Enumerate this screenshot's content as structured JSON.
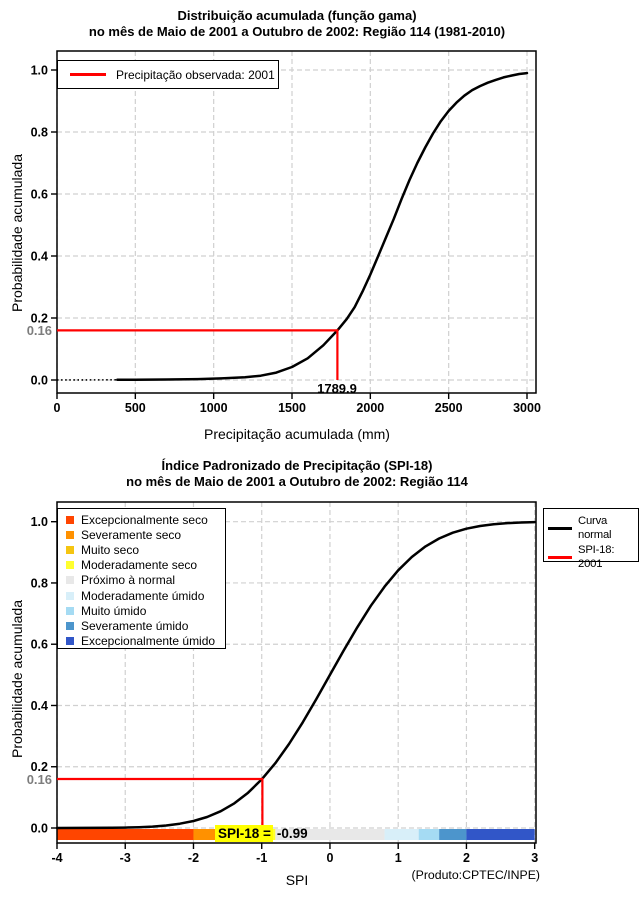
{
  "note": "(Produto:CPTEC/INPE)",
  "colors": {
    "observed_line": "#FF0000",
    "curve": "#000000",
    "grid": "#D0D0D0",
    "prob_label_gray": "#7D7D7D",
    "annotation_highlight": "#FFFF00"
  },
  "chart_data": [
    {
      "type": "line",
      "title1": "Distribuição acumulada (função gama)",
      "title2": "no mês de Maio de 2001 a Outubro de 2002: Região 114 (1981-2010)",
      "xlabel": "Precipitação acumulada (mm)",
      "ylabel": "Probabilidade acumulada",
      "xlim": [
        0,
        3000
      ],
      "ylim": [
        0,
        1
      ],
      "grid": true,
      "xtick_values": [
        0,
        500,
        1000,
        1500,
        2000,
        2500,
        3000
      ],
      "xtick_labels": [
        "0",
        "500",
        "1000",
        "1500",
        "2000",
        "2500",
        "3000"
      ],
      "ytick_values": [
        0,
        0.2,
        0.4,
        0.6,
        0.8,
        1
      ],
      "ytick_labels": [
        "0.0",
        "0.2",
        "0.4",
        "0.6",
        "0.8",
        "1.0"
      ],
      "legend": {
        "position": "top-left",
        "items": [
          {
            "label": "Precipitação observada: 2001",
            "color": "#FF0000"
          }
        ]
      },
      "marker": {
        "prob": 0.16,
        "prob_label": "0.16",
        "x": 1789.9,
        "x_label": "1789.9",
        "color": "#FF0000"
      },
      "series": [
        {
          "name": "Distribuição acumulada (função gama)",
          "color": "#000000",
          "dotted_until": 385,
          "points": [
            [
              0,
              0.0002
            ],
            [
              385,
              0.0005
            ],
            [
              500,
              0.0008
            ],
            [
              700,
              0.0015
            ],
            [
              900,
              0.003
            ],
            [
              1050,
              0.005
            ],
            [
              1200,
              0.009
            ],
            [
              1300,
              0.014
            ],
            [
              1400,
              0.024
            ],
            [
              1500,
              0.042
            ],
            [
              1600,
              0.07
            ],
            [
              1700,
              0.112
            ],
            [
              1789.9,
              0.16
            ],
            [
              1850,
              0.197
            ],
            [
              1900,
              0.235
            ],
            [
              1950,
              0.285
            ],
            [
              2000,
              0.34
            ],
            [
              2050,
              0.4
            ],
            [
              2100,
              0.46
            ],
            [
              2150,
              0.52
            ],
            [
              2200,
              0.585
            ],
            [
              2250,
              0.645
            ],
            [
              2300,
              0.7
            ],
            [
              2350,
              0.75
            ],
            [
              2400,
              0.795
            ],
            [
              2450,
              0.835
            ],
            [
              2500,
              0.868
            ],
            [
              2550,
              0.895
            ],
            [
              2600,
              0.917
            ],
            [
              2650,
              0.935
            ],
            [
              2700,
              0.948
            ],
            [
              2750,
              0.959
            ],
            [
              2800,
              0.968
            ],
            [
              2850,
              0.976
            ],
            [
              2900,
              0.982
            ],
            [
              2950,
              0.987
            ],
            [
              3000,
              0.99
            ]
          ]
        }
      ]
    },
    {
      "type": "line",
      "title1": "Índice Padronizado de Precipitação (SPI-18)",
      "title2": "no mês de Maio de 2001 a Outubro de 2002: Região 114",
      "xlabel": "SPI",
      "ylabel": "Probabilidade acumulada",
      "xlim": [
        -4,
        3
      ],
      "ylim": [
        0,
        1
      ],
      "grid": true,
      "xtick_values": [
        -4,
        -3,
        -2,
        -1,
        0,
        1,
        2,
        3
      ],
      "xtick_labels": [
        "-4",
        "-3",
        "-2",
        "-1",
        "0",
        "1",
        "2",
        "3"
      ],
      "ytick_values": [
        0,
        0.2,
        0.4,
        0.6,
        0.8,
        1
      ],
      "ytick_labels": [
        "0.0",
        "0.2",
        "0.4",
        "0.6",
        "0.8",
        "1.0"
      ],
      "categories_legend": {
        "position": "top-left",
        "items": [
          {
            "label": "Excepcionalmente seco",
            "color": "#FF4500"
          },
          {
            "label": "Severamente seco",
            "color": "#FF9100"
          },
          {
            "label": "Muito seco",
            "color": "#F5C511"
          },
          {
            "label": "Moderadamente seco",
            "color": "#FFFF2E"
          },
          {
            "label": "Próximo à normal",
            "color": "#E8E8E8"
          },
          {
            "label": "Moderadamente úmido",
            "color": "#D8EFF9"
          },
          {
            "label": "Muito úmido",
            "color": "#A5DBF3"
          },
          {
            "label": "Severamente úmido",
            "color": "#4C95CC"
          },
          {
            "label": "Excepcionalmente úmido",
            "color": "#3156C8"
          }
        ]
      },
      "curves_legend": {
        "position": "top-right",
        "items": [
          {
            "lines": [
              "Curva",
              "normal"
            ],
            "color": "#000000"
          },
          {
            "lines": [
              "SPI-18: 2001"
            ],
            "color": "#FF0000"
          }
        ]
      },
      "marker": {
        "prob": 0.16,
        "prob_label": "0.16",
        "x": -0.99,
        "color": "#FF0000"
      },
      "annotation": {
        "label": "SPI-18 =",
        "value": "-0.99",
        "highlight_color": "#FFFF00"
      },
      "bar_segments": [
        {
          "from": -4,
          "to": -2,
          "color": "#FF4500"
        },
        {
          "from": -2,
          "to": -1.6,
          "color": "#FF9100"
        },
        {
          "from": -1.6,
          "to": -1.3,
          "color": "#F5C511"
        },
        {
          "from": -1.3,
          "to": -0.8,
          "color": "#FFFF2E"
        },
        {
          "from": -0.8,
          "to": 0.8,
          "color": "#E8E8E8"
        },
        {
          "from": 0.8,
          "to": 1.3,
          "color": "#D8EFF9"
        },
        {
          "from": 1.3,
          "to": 1.6,
          "color": "#A5DBF3"
        },
        {
          "from": 1.6,
          "to": 2.0,
          "color": "#4C95CC"
        },
        {
          "from": 2.0,
          "to": 3.0,
          "color": "#3156C8"
        }
      ],
      "series": [
        {
          "name": "Curva normal",
          "color": "#000000",
          "points": [
            [
              -4,
              3e-05
            ],
            [
              -3.6,
              0.0002
            ],
            [
              -3.2,
              0.0007
            ],
            [
              -3,
              0.0013
            ],
            [
              -2.8,
              0.0026
            ],
            [
              -2.6,
              0.0047
            ],
            [
              -2.4,
              0.0082
            ],
            [
              -2.2,
              0.0139
            ],
            [
              -2,
              0.0228
            ],
            [
              -1.8,
              0.0359
            ],
            [
              -1.6,
              0.0548
            ],
            [
              -1.4,
              0.0808
            ],
            [
              -1.2,
              0.1151
            ],
            [
              -1,
              0.1587
            ],
            [
              -0.8,
              0.2119
            ],
            [
              -0.6,
              0.2743
            ],
            [
              -0.4,
              0.3446
            ],
            [
              -0.2,
              0.4207
            ],
            [
              0,
              0.5
            ],
            [
              0.2,
              0.5793
            ],
            [
              0.4,
              0.6554
            ],
            [
              0.6,
              0.7257
            ],
            [
              0.8,
              0.7881
            ],
            [
              1,
              0.8413
            ],
            [
              1.2,
              0.8849
            ],
            [
              1.4,
              0.9192
            ],
            [
              1.6,
              0.9452
            ],
            [
              1.8,
              0.9641
            ],
            [
              2,
              0.9772
            ],
            [
              2.2,
              0.9861
            ],
            [
              2.4,
              0.9918
            ],
            [
              2.6,
              0.9953
            ],
            [
              2.8,
              0.9974
            ],
            [
              3,
              0.9987
            ]
          ]
        }
      ]
    }
  ]
}
